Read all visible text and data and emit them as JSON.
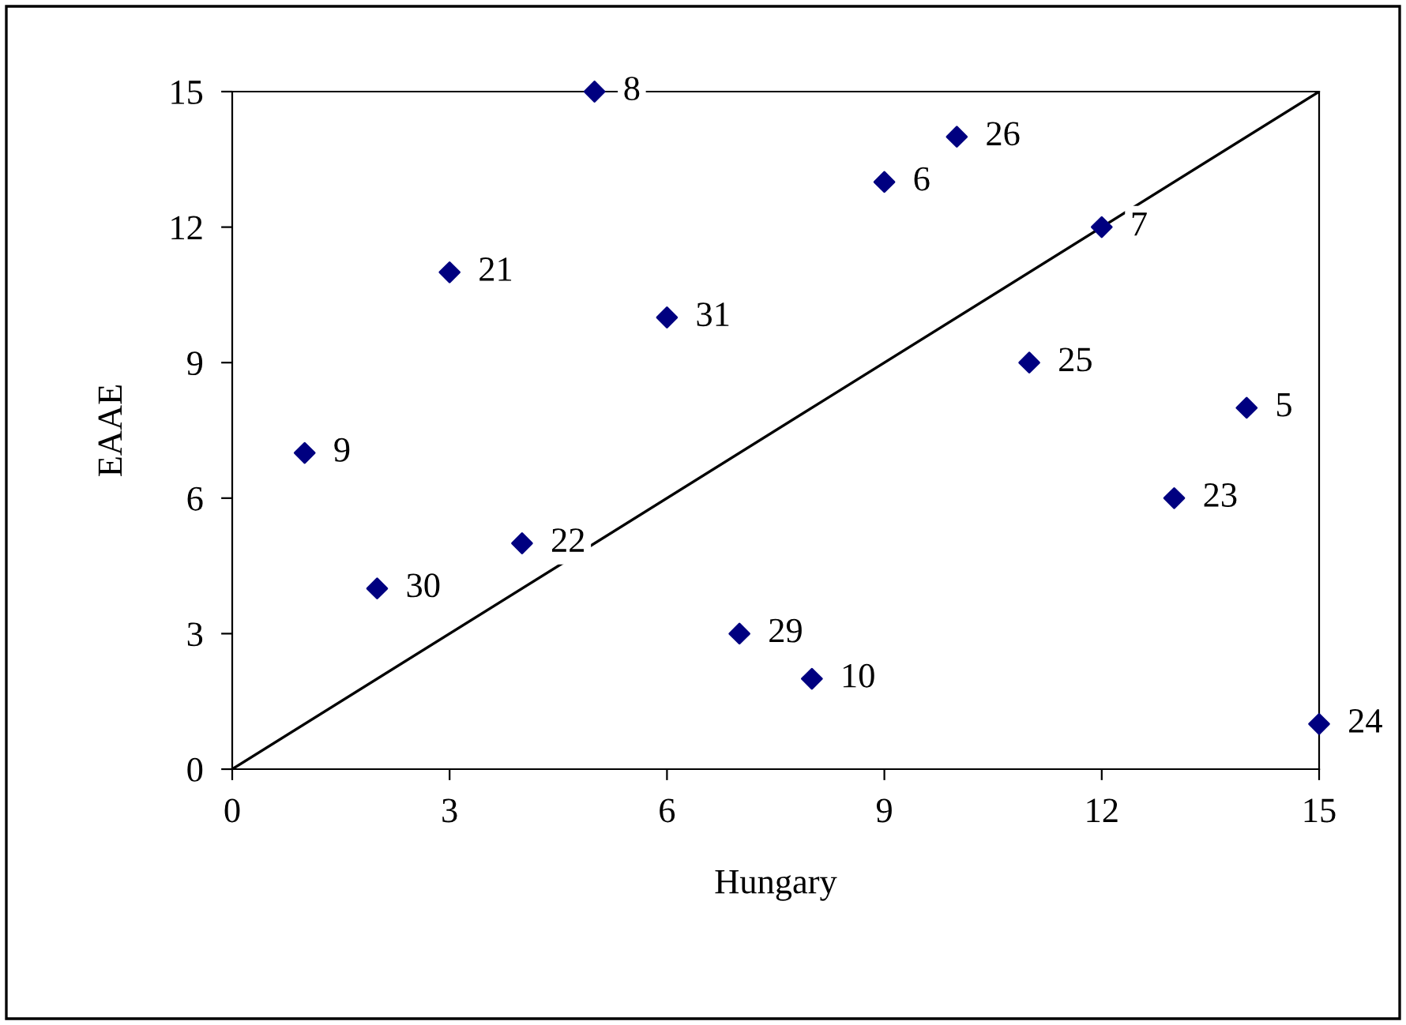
{
  "chart_data": {
    "type": "scatter",
    "xlabel": "Hungary",
    "ylabel": "EAAE",
    "marker": "diamond",
    "grid": false,
    "xlim": [
      0,
      15
    ],
    "ylim": [
      0,
      15
    ],
    "xticks": [
      0,
      3,
      6,
      9,
      12,
      15
    ],
    "yticks": [
      0,
      3,
      6,
      9,
      12,
      15
    ],
    "series": [
      {
        "color": "#000080",
        "x": [
          1,
          2,
          3,
          4,
          5,
          6,
          7,
          8,
          9,
          10,
          11,
          12,
          13,
          14,
          15
        ],
        "values": [
          7,
          4,
          11,
          5,
          15,
          10,
          3,
          2,
          13,
          14,
          9,
          12,
          6,
          8,
          1
        ]
      },
      {
        "type": "line",
        "color": "#000000",
        "x": [
          0,
          15
        ],
        "values": [
          0,
          15
        ],
        "marker": "none",
        "line_style": "solid"
      }
    ],
    "annotations": [
      {
        "text": "9",
        "x": 1,
        "y": 7
      },
      {
        "text": "30",
        "x": 2,
        "y": 4
      },
      {
        "text": "21",
        "x": 3,
        "y": 11
      },
      {
        "text": "22",
        "x": 4,
        "y": 5
      },
      {
        "text": "8",
        "x": 5,
        "y": 15
      },
      {
        "text": "31",
        "x": 6,
        "y": 10
      },
      {
        "text": "29",
        "x": 7,
        "y": 3
      },
      {
        "text": "10",
        "x": 8,
        "y": 2
      },
      {
        "text": "6",
        "x": 9,
        "y": 13
      },
      {
        "text": "26",
        "x": 10,
        "y": 14
      },
      {
        "text": "25",
        "x": 11,
        "y": 9
      },
      {
        "text": "7",
        "x": 12,
        "y": 12
      },
      {
        "text": "23",
        "x": 13,
        "y": 6
      },
      {
        "text": "5",
        "x": 14,
        "y": 8
      },
      {
        "text": "24",
        "x": 15,
        "y": 1
      }
    ]
  }
}
